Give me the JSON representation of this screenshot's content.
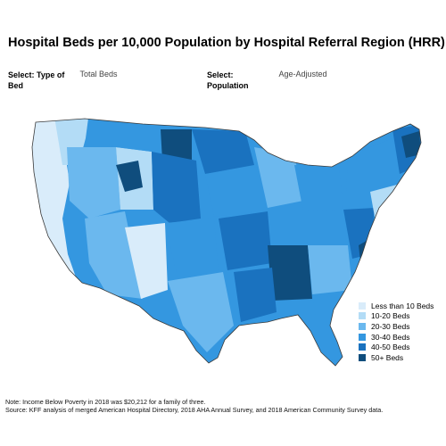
{
  "title": "Hospital Beds per 10,000 Population by Hospital Referral Region (HRR)",
  "filters": [
    {
      "label": "Select: Type of Bed",
      "value": "Total Beds"
    },
    {
      "label": "Select: Population",
      "value": "Age-Adjusted"
    }
  ],
  "legend": [
    {
      "label": "Less than 10 Beds",
      "color": "#d9ecfa"
    },
    {
      "label": "10-20 Beds",
      "color": "#b3dcf6"
    },
    {
      "label": "20-30 Beds",
      "color": "#6bb8ee"
    },
    {
      "label": "30-40 Beds",
      "color": "#3497e0"
    },
    {
      "label": "40-50 Beds",
      "color": "#1a72bf"
    },
    {
      "label": "50+ Beds",
      "color": "#0f4d7d"
    }
  ],
  "footer": {
    "note": "Note: Income Below Poverty in 2018 was $20,212 for a family of three.",
    "source": "Source: KFF analysis of merged American Hospital Directory, 2018 AHA Annual Survey, and 2018 American Community Survey data."
  }
}
